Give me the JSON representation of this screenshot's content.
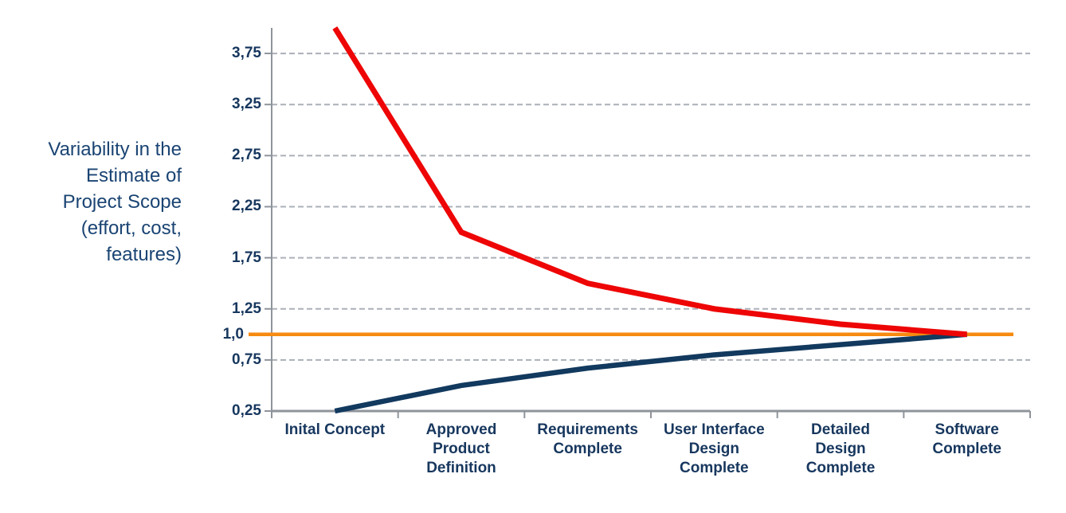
{
  "chart_data": {
    "type": "line",
    "title": "",
    "legend": "none",
    "grid": "horizontal-dashed",
    "x_axis": {
      "categories": [
        "Inital Concept",
        "Approved Product Definition",
        "Requirements Complete",
        "User Interface Design Complete",
        "Detailed Design Complete",
        "Software Complete"
      ],
      "category_label_lines": [
        [
          "Inital Concept"
        ],
        [
          "Approved",
          "Product",
          "Definition"
        ],
        [
          "Requirements",
          "Complete"
        ],
        [
          "User Interface",
          "Design",
          "Complete"
        ],
        [
          "Detailed",
          "Design",
          "Complete"
        ],
        [
          "Software",
          "Complete"
        ]
      ]
    },
    "y_axis": {
      "title_lines": [
        "Variability in the",
        "Estimate of",
        "Project Scope",
        "(effort, cost,",
        "features)"
      ],
      "range": [
        0.25,
        4.0
      ],
      "ticks": [
        {
          "label": "3,75",
          "value": 3.75
        },
        {
          "label": "3,25",
          "value": 3.25
        },
        {
          "label": "2,75",
          "value": 2.75
        },
        {
          "label": "2,25",
          "value": 2.25
        },
        {
          "label": "1,75",
          "value": 1.75
        },
        {
          "label": "1,25",
          "value": 1.25
        },
        {
          "label": "1,0",
          "value": 1.0
        },
        {
          "label": "0,75",
          "value": 0.75
        },
        {
          "label": "0,25",
          "value": 0.25
        }
      ]
    },
    "gridline_values": [
      3.75,
      3.25,
      2.75,
      2.25,
      1.75,
      1.25,
      0.75
    ],
    "series": [
      {
        "name": "upper-bound-estimate",
        "color": "#EE0505",
        "width": 7,
        "values": [
          4.0,
          2.0,
          1.5,
          1.25,
          1.1,
          1.0
        ]
      },
      {
        "name": "lower-bound-estimate",
        "color": "#12395E",
        "width": 6.5,
        "values": [
          0.25,
          0.5,
          0.67,
          0.8,
          0.9,
          1.0
        ]
      }
    ],
    "baseline": {
      "name": "target-estimate",
      "value": 1.0,
      "color": "#F78A10",
      "width": 4.5
    }
  },
  "colors": {
    "background": "#FFFFFF",
    "tick_label": "#17375E",
    "category_label": "#17375E",
    "axis_title": "#1A4473",
    "axis_line": "#8F949B",
    "gridline": "#ABB0B8"
  }
}
